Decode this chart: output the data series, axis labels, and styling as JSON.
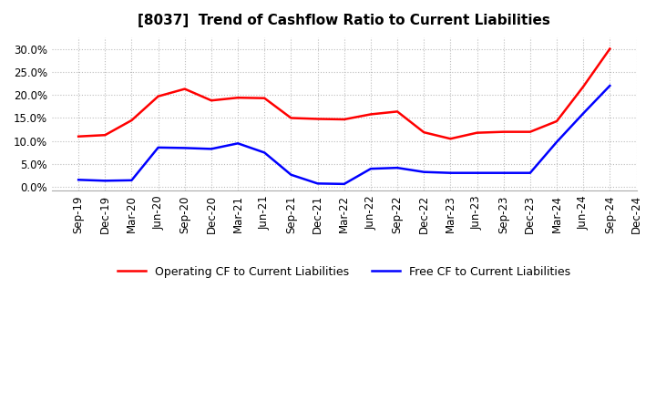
{
  "title": "[8037]  Trend of Cashflow Ratio to Current Liabilities",
  "x_labels": [
    "Sep-19",
    "Dec-19",
    "Mar-20",
    "Jun-20",
    "Sep-20",
    "Dec-20",
    "Mar-21",
    "Jun-21",
    "Sep-21",
    "Dec-21",
    "Mar-22",
    "Jun-22",
    "Sep-22",
    "Dec-22",
    "Mar-23",
    "Jun-23",
    "Sep-23",
    "Dec-23",
    "Mar-24",
    "Jun-24",
    "Sep-24",
    "Dec-24"
  ],
  "operating_cf": [
    0.11,
    0.113,
    0.145,
    0.197,
    0.213,
    0.188,
    0.194,
    0.193,
    0.15,
    0.148,
    0.147,
    0.158,
    0.164,
    0.119,
    0.105,
    0.118,
    0.12,
    0.12,
    0.143,
    0.218,
    0.3,
    null
  ],
  "free_cf": [
    0.016,
    0.014,
    0.015,
    0.086,
    0.085,
    0.083,
    0.095,
    0.075,
    0.027,
    0.008,
    0.007,
    0.04,
    0.042,
    0.033,
    0.031,
    0.031,
    0.031,
    0.031,
    0.098,
    0.16,
    0.22,
    null
  ],
  "operating_color": "#FF0000",
  "free_color": "#0000FF",
  "ylim": [
    -0.008,
    0.325
  ],
  "yticks": [
    0.0,
    0.05,
    0.1,
    0.15,
    0.2,
    0.25,
    0.3
  ],
  "background_color": "#FFFFFF",
  "grid_color": "#BBBBBB",
  "legend_operating": "Operating CF to Current Liabilities",
  "legend_free": "Free CF to Current Liabilities",
  "title_fontsize": 11,
  "tick_fontsize": 8.5,
  "legend_fontsize": 9
}
